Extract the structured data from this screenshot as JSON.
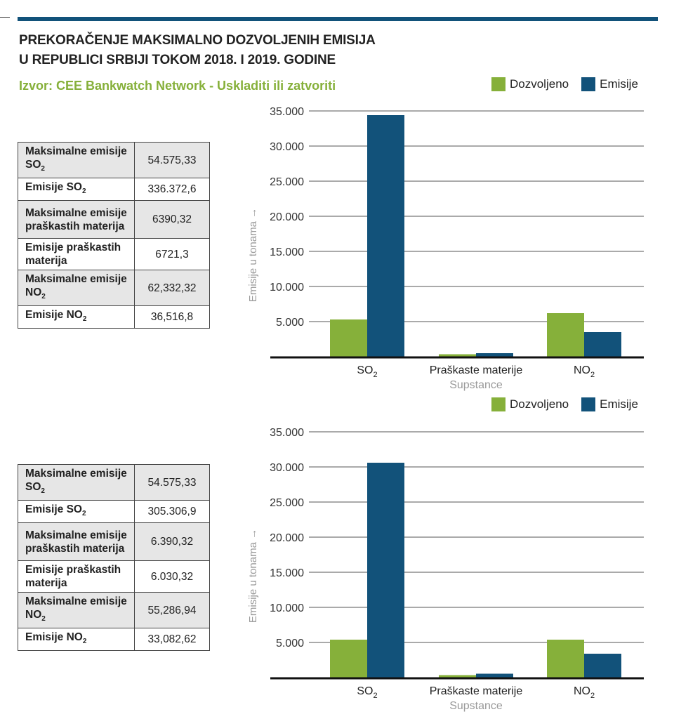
{
  "header": {
    "title_line1": "PREKORAČENJE MAKSIMALNO DOZVOLJENIH EMISIJA",
    "title_line2": "U REPUBLICI SRBIJI TOKOM 2018. I 2019. GODINE",
    "source": "Izvor: CEE Bankwatch Network - Uskladiti ili zatvoriti"
  },
  "colors": {
    "dozvoljeno": "#86b03a",
    "emisije": "#12527a",
    "accent": "#12527a"
  },
  "tables": [
    {
      "rows": [
        {
          "label": "Maksimalne emisije SO",
          "sub": "2",
          "value": "54.575,33",
          "shaded": true
        },
        {
          "label": "Emisije SO",
          "sub": "2",
          "value": "336.372,6",
          "shaded": false
        },
        {
          "label": "Maksimalne emisije praškastih materija",
          "sub": "",
          "value": "6390,32",
          "shaded": true
        },
        {
          "label": "Emisije praškastih materija",
          "sub": "",
          "value": "6721,3",
          "shaded": false
        },
        {
          "label": "Maksimalne emisije NO",
          "sub": "2",
          "value": "62,332,32",
          "shaded": true
        },
        {
          "label": "Emisije NO",
          "sub": "2",
          "value": "36,516,8",
          "shaded": false
        }
      ]
    },
    {
      "rows": [
        {
          "label": "Maksimalne emisije SO",
          "sub": "2",
          "value": "54.575,33",
          "shaded": true
        },
        {
          "label": "Emisije SO",
          "sub": "2",
          "value": "305.306,9",
          "shaded": false
        },
        {
          "label": "Maksimalne emisije praškastih materija",
          "sub": "",
          "value": "6.390,32",
          "shaded": true
        },
        {
          "label": "Emisije praškastih materija",
          "sub": "",
          "value": "6.030,32",
          "shaded": false
        },
        {
          "label": "Maksimalne emisije NO",
          "sub": "2",
          "value": "55,286,94",
          "shaded": true
        },
        {
          "label": "Emisije NO",
          "sub": "2",
          "value": "33,082,62",
          "shaded": false
        }
      ]
    }
  ],
  "chart_data": [
    {
      "type": "bar",
      "categories": [
        "SO2",
        "Praškaste materije",
        "NO2"
      ],
      "xlabel": "Supstance",
      "ylabel": "Emisije u tonama →",
      "ylim": [
        0,
        35000
      ],
      "yticks": [
        "5.000",
        "10.000",
        "15.000",
        "20.000",
        "25.000",
        "30.000",
        "35.000"
      ],
      "grid": true,
      "legend": "top-right",
      "series": [
        {
          "name": "Dozvoljeno",
          "values": [
            5300,
            350,
            6200
          ]
        },
        {
          "name": "Emisije",
          "values": [
            34400,
            500,
            3500
          ]
        }
      ]
    },
    {
      "type": "bar",
      "categories": [
        "SO2",
        "Praškaste materije",
        "NO2"
      ],
      "xlabel": "Supstance",
      "ylabel": "Emisije u tonama →",
      "ylim": [
        0,
        35000
      ],
      "yticks": [
        "5.000",
        "10.000",
        "15.000",
        "20.000",
        "25.000",
        "30.000",
        "35.000"
      ],
      "grid": true,
      "legend": "top-right",
      "series": [
        {
          "name": "Dozvoljeno",
          "values": [
            5400,
            350,
            5400
          ]
        },
        {
          "name": "Emisije",
          "values": [
            30600,
            550,
            3400
          ]
        }
      ]
    }
  ]
}
